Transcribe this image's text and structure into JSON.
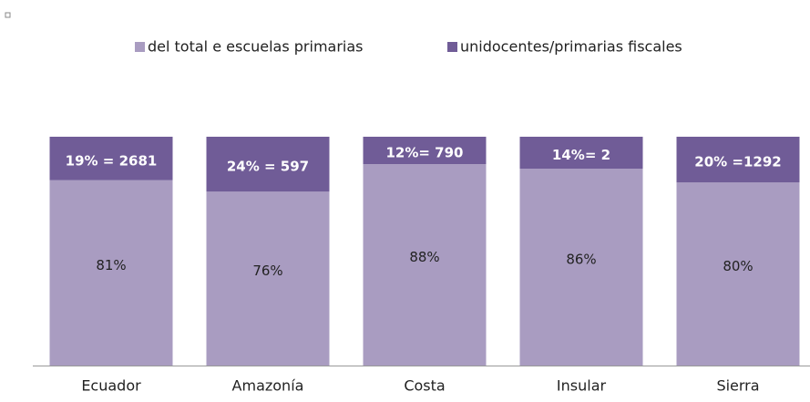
{
  "chart_data": {
    "type": "stacked_bar",
    "categories": [
      "Ecuador",
      "Amazonía",
      "Costa",
      "Insular",
      "Sierra"
    ],
    "series": [
      {
        "name": "del total e escuelas primarias",
        "color": "#a99cc1",
        "values": [
          81,
          76,
          88,
          86,
          80
        ],
        "value_labels": [
          "81%",
          "76%",
          "88%",
          "86%",
          "80%"
        ]
      },
      {
        "name": "unidocentes/primarias fiscales",
        "color": "#705c97",
        "values": [
          19,
          24,
          12,
          14,
          20
        ],
        "value_labels": [
          "19% = 2681",
          "24% = 597",
          "12%= 790",
          "14%= 2",
          "20% =1292"
        ]
      }
    ],
    "ylim": [
      0,
      100
    ]
  }
}
